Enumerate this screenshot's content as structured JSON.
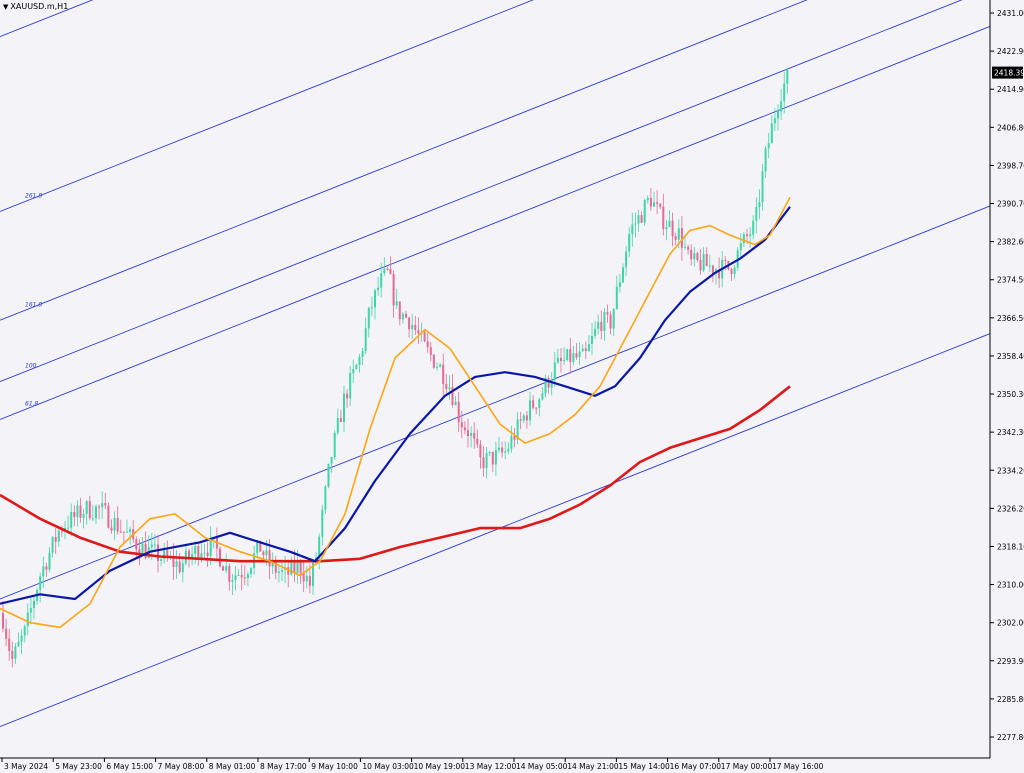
{
  "header": {
    "symbol": "XAUUSD.m,H1",
    "menu_icon": "triangle-down-icon"
  },
  "colors": {
    "background": "#f3f3f8",
    "axis": "#000000",
    "bull_candle": "#3dd6a8",
    "bear_candle": "#e8688f",
    "channel": "#2a3ad6",
    "fib_label": "#2a3ad6",
    "ma_fast": "#ffa510",
    "ma_mid": "#0a17a8",
    "ma_slow": "#e01818",
    "price_label_bg": "#000000",
    "price_label_fg": "#ffffff"
  },
  "chart_data": {
    "type": "candlestick",
    "symbol": "XAUUSD.m,H1",
    "ylim": [
      2277.8,
      2431.0
    ],
    "current_price": 2418.39,
    "y_ticks": [
      "2431.00",
      "2422.90",
      "2414.90",
      "2406.80",
      "2398.70",
      "2390.70",
      "2382.60",
      "2374.50",
      "2366.50",
      "2358.40",
      "2350.30",
      "2342.30",
      "2334.20",
      "2326.20",
      "2318.10",
      "2310.00",
      "2302.00",
      "2293.90",
      "2285.80",
      "2277.80"
    ],
    "x_labels": [
      "3 May 2024",
      "5 May 23:00",
      "6 May 15:00",
      "7 May 08:00",
      "8 May 01:00",
      "8 May 17:00",
      "9 May 10:00",
      "10 May 03:00",
      "10 May 19:00",
      "13 May 12:00",
      "14 May 05:00",
      "14 May 21:00",
      "15 May 14:00",
      "16 May 07:00",
      "17 May 00:00",
      "17 May 16:00"
    ],
    "fib_labels": [
      "261.8",
      "161.8",
      "100",
      "61.8"
    ],
    "price_anchors": [
      [
        0,
        2306
      ],
      [
        12,
        2294
      ],
      [
        25,
        2300
      ],
      [
        40,
        2312
      ],
      [
        60,
        2322
      ],
      [
        85,
        2326
      ],
      [
        100,
        2326
      ],
      [
        120,
        2322
      ],
      [
        140,
        2318
      ],
      [
        160,
        2316
      ],
      [
        180,
        2314
      ],
      [
        200,
        2318
      ],
      [
        215,
        2318
      ],
      [
        230,
        2312
      ],
      [
        245,
        2313
      ],
      [
        260,
        2318
      ],
      [
        270,
        2314
      ],
      [
        285,
        2312
      ],
      [
        300,
        2314
      ],
      [
        310,
        2310
      ],
      [
        318,
        2318
      ],
      [
        330,
        2336
      ],
      [
        345,
        2350
      ],
      [
        360,
        2358
      ],
      [
        370,
        2368
      ],
      [
        380,
        2374
      ],
      [
        388,
        2376
      ],
      [
        397,
        2368
      ],
      [
        410,
        2366
      ],
      [
        425,
        2360
      ],
      [
        440,
        2356
      ],
      [
        450,
        2352
      ],
      [
        460,
        2345
      ],
      [
        470,
        2342
      ],
      [
        480,
        2336
      ],
      [
        495,
        2337
      ],
      [
        505,
        2338
      ],
      [
        515,
        2342
      ],
      [
        525,
        2346
      ],
      [
        540,
        2350
      ],
      [
        555,
        2356
      ],
      [
        570,
        2358
      ],
      [
        585,
        2358
      ],
      [
        600,
        2366
      ],
      [
        610,
        2365
      ],
      [
        620,
        2375
      ],
      [
        630,
        2385
      ],
      [
        640,
        2388
      ],
      [
        650,
        2392
      ],
      [
        660,
        2388
      ],
      [
        670,
        2386
      ],
      [
        680,
        2384
      ],
      [
        690,
        2378
      ],
      [
        700,
        2378
      ],
      [
        715,
        2377
      ],
      [
        730,
        2377
      ],
      [
        745,
        2383
      ],
      [
        755,
        2386
      ],
      [
        765,
        2400
      ],
      [
        773,
        2408
      ],
      [
        780,
        2414
      ],
      [
        790,
        2418.39
      ]
    ],
    "ma_fast": [
      [
        0,
        2305
      ],
      [
        30,
        2302
      ],
      [
        60,
        2301
      ],
      [
        90,
        2306
      ],
      [
        120,
        2318
      ],
      [
        150,
        2324
      ],
      [
        175,
        2325
      ],
      [
        205,
        2320
      ],
      [
        240,
        2317
      ],
      [
        270,
        2315
      ],
      [
        300,
        2312
      ],
      [
        320,
        2315
      ],
      [
        345,
        2325
      ],
      [
        370,
        2343
      ],
      [
        395,
        2358
      ],
      [
        425,
        2364
      ],
      [
        450,
        2360
      ],
      [
        475,
        2352
      ],
      [
        500,
        2344
      ],
      [
        525,
        2340
      ],
      [
        550,
        2342
      ],
      [
        575,
        2346
      ],
      [
        600,
        2352
      ],
      [
        625,
        2362
      ],
      [
        650,
        2372
      ],
      [
        670,
        2380
      ],
      [
        690,
        2385
      ],
      [
        710,
        2386
      ],
      [
        730,
        2384
      ],
      [
        755,
        2382
      ],
      [
        770,
        2384
      ],
      [
        790,
        2392
      ]
    ],
    "ma_mid": [
      [
        0,
        2306
      ],
      [
        40,
        2308
      ],
      [
        75,
        2307
      ],
      [
        110,
        2313
      ],
      [
        150,
        2317
      ],
      [
        200,
        2319
      ],
      [
        230,
        2321
      ],
      [
        260,
        2319
      ],
      [
        290,
        2317
      ],
      [
        315,
        2315
      ],
      [
        345,
        2322
      ],
      [
        375,
        2332
      ],
      [
        410,
        2342
      ],
      [
        445,
        2350
      ],
      [
        475,
        2354
      ],
      [
        505,
        2355
      ],
      [
        535,
        2354
      ],
      [
        565,
        2352
      ],
      [
        595,
        2350
      ],
      [
        615,
        2352
      ],
      [
        640,
        2358
      ],
      [
        665,
        2366
      ],
      [
        690,
        2372
      ],
      [
        715,
        2376
      ],
      [
        740,
        2379
      ],
      [
        765,
        2383
      ],
      [
        790,
        2390
      ]
    ],
    "ma_slow": [
      [
        0,
        2329
      ],
      [
        40,
        2324
      ],
      [
        80,
        2320
      ],
      [
        120,
        2317
      ],
      [
        160,
        2316
      ],
      [
        200,
        2315.5
      ],
      [
        240,
        2315
      ],
      [
        280,
        2315
      ],
      [
        320,
        2315
      ],
      [
        360,
        2315.5
      ],
      [
        400,
        2318
      ],
      [
        440,
        2320
      ],
      [
        480,
        2322
      ],
      [
        520,
        2322
      ],
      [
        550,
        2324
      ],
      [
        580,
        2327
      ],
      [
        610,
        2331
      ],
      [
        640,
        2336
      ],
      [
        670,
        2339
      ],
      [
        700,
        2341
      ],
      [
        730,
        2343
      ],
      [
        760,
        2347
      ],
      [
        790,
        2352
      ]
    ],
    "channel_lines": [
      {
        "label": "",
        "y_at_x0": 2426,
        "y_at_x1000": 2510
      },
      {
        "label": "261.8",
        "y_at_x0": 2389,
        "y_at_x1000": 2473
      },
      {
        "label": "161.8",
        "y_at_x0": 2366,
        "y_at_x1000": 2450
      },
      {
        "label": "100",
        "y_at_x0": 2353,
        "y_at_x1000": 2437
      },
      {
        "label": "61.8",
        "y_at_x0": 2345,
        "y_at_x1000": 2429
      },
      {
        "label": "",
        "y_at_x0": 2307,
        "y_at_x1000": 2391
      },
      {
        "label": "",
        "y_at_x0": 2280,
        "y_at_x1000": 2364
      }
    ]
  }
}
